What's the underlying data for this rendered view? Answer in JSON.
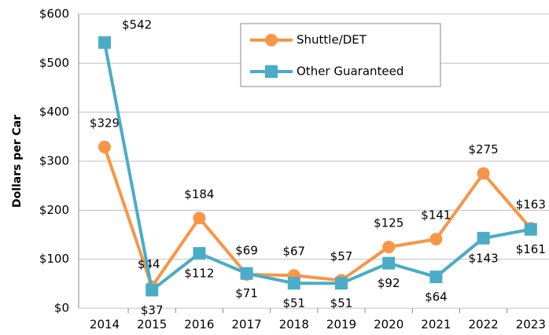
{
  "chart_data": {
    "type": "line",
    "categories": [
      "2014",
      "2015",
      "2016",
      "2017",
      "2018",
      "2019",
      "2020",
      "2021",
      "2022",
      "2023"
    ],
    "y_label": "Dollars per Car",
    "ylim": [
      0,
      600
    ],
    "yticks": [
      {
        "value": 0,
        "label": "$0"
      },
      {
        "value": 100,
        "label": "$100"
      },
      {
        "value": 200,
        "label": "$200"
      },
      {
        "value": 300,
        "label": "$300"
      },
      {
        "value": 400,
        "label": "$400"
      },
      {
        "value": 500,
        "label": "$500"
      },
      {
        "value": 600,
        "label": "$600"
      }
    ],
    "grid": true,
    "series": [
      {
        "name": "Shuttle/DET",
        "color": "#f79646",
        "marker": "circle",
        "values": [
          329,
          44,
          184,
          69,
          67,
          57,
          125,
          141,
          275,
          163
        ],
        "value_labels": [
          "$329",
          "$44",
          "$184",
          "$69",
          "$67",
          "$57",
          "$125",
          "$141",
          "$275",
          "$163"
        ]
      },
      {
        "name": "Other Guaranteed",
        "color": "#4bacc6",
        "marker": "square",
        "values": [
          542,
          37,
          112,
          71,
          51,
          51,
          92,
          64,
          143,
          161
        ],
        "value_labels": [
          "$542",
          "$37",
          "$112",
          "$71",
          "$51",
          "$51",
          "$92",
          "$64",
          "$143",
          "$161"
        ]
      }
    ]
  }
}
